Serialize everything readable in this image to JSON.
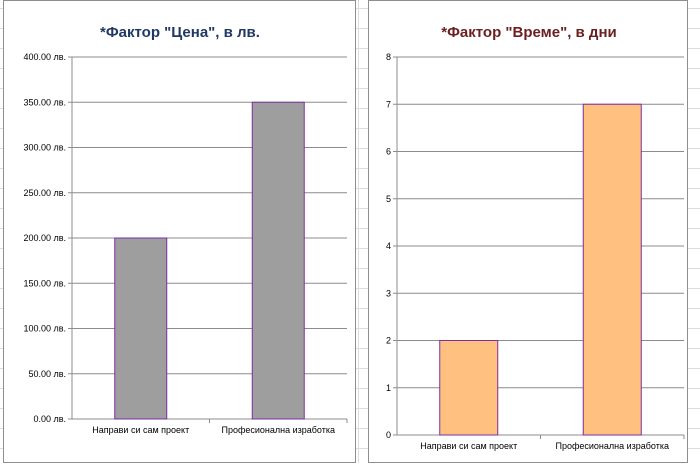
{
  "chart_data": [
    {
      "type": "bar",
      "title": "*Фактор \"Цена\", в лв.",
      "title_color": "#1f3864",
      "bar_color": "#9e9e9e",
      "bar_border": "#7b2fa0",
      "categories": [
        "Направи си сам проект",
        "Професионална изработка"
      ],
      "values": [
        200,
        350
      ],
      "ylim": [
        0,
        400
      ],
      "yticks": [
        "0.00 лв.",
        "50.00 лв.",
        "100.00 лв.",
        "150.00 лв.",
        "200.00 лв.",
        "250.00 лв.",
        "300.00 лв.",
        "350.00 лв.",
        "400.00 лв."
      ],
      "xlabel": "",
      "ylabel": "",
      "grid": true,
      "legend": "none"
    },
    {
      "type": "bar",
      "title": "*Фактор \"Време\", в дни",
      "title_color": "#6b1f1f",
      "bar_color": "#ffc080",
      "bar_border": "#7b2fa0",
      "categories": [
        "Направи си сам проект",
        "Професионална изработка"
      ],
      "values": [
        2,
        7
      ],
      "ylim": [
        0,
        8
      ],
      "yticks": [
        "0",
        "1",
        "2",
        "3",
        "4",
        "5",
        "6",
        "7",
        "8"
      ],
      "xlabel": "",
      "ylabel": "",
      "grid": true,
      "legend": "none"
    }
  ]
}
